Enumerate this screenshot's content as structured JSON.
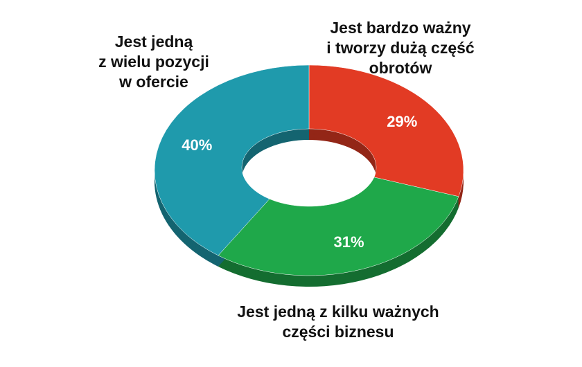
{
  "chart_data": {
    "type": "donut",
    "categories": [
      [
        "Jest bardzo ważny",
        "i tworzy dużą część",
        "obrotów"
      ],
      [
        "Jest jedną z kilku ważnych",
        "części biznesu"
      ],
      [
        "Jest jedną",
        "z wielu pozycji",
        "w ofercie"
      ]
    ],
    "values": [
      29,
      31,
      40
    ],
    "value_labels": [
      "29%",
      "31%",
      "40%"
    ],
    "colors": [
      "#e23b24",
      "#1fa84a",
      "#1f9aac"
    ]
  }
}
